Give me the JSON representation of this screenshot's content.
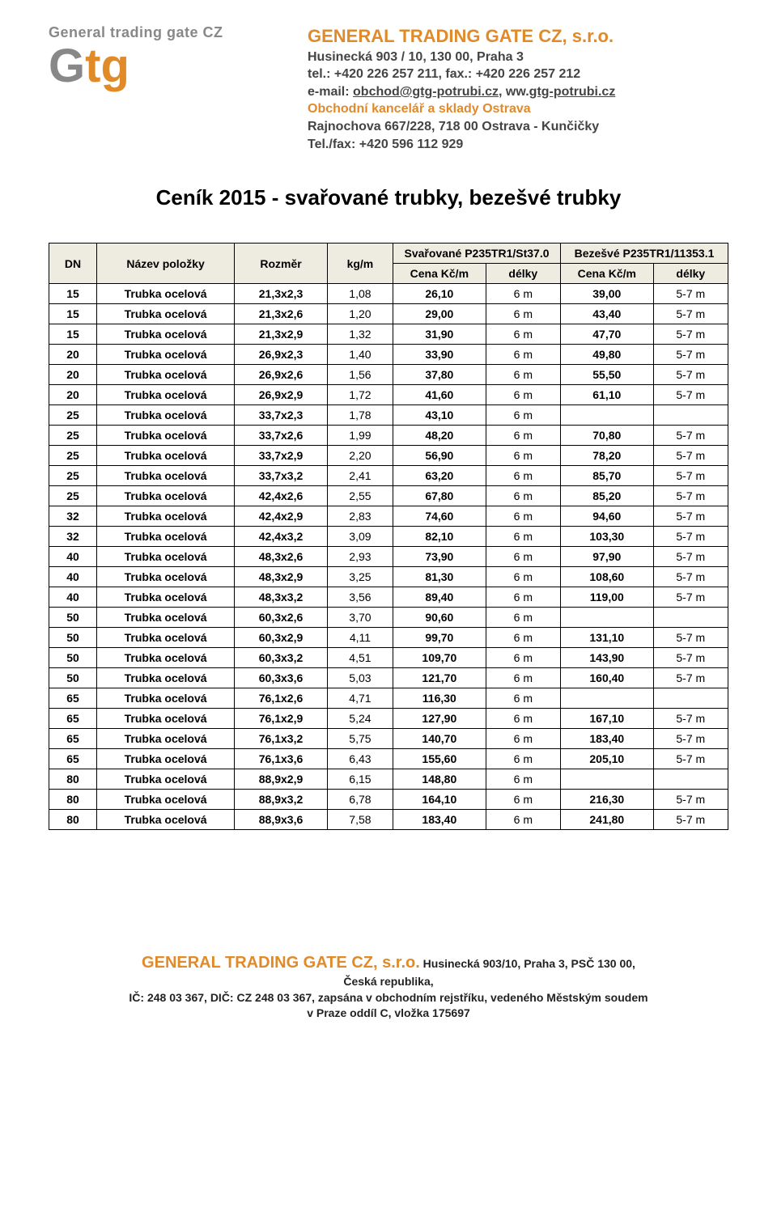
{
  "header": {
    "logo_text": "General trading gate CZ",
    "logo_g": "G",
    "logo_tg": "tg",
    "company": "GENERAL TRADING GATE CZ, s.r.o.",
    "addr1": "Husinecká 903 / 10, 130 00, Praha 3",
    "tel": "tel.: +420 226 257 211, fax.: +420 226 257 212",
    "email_label": "e-mail: ",
    "email": "obchod@gtg-potrubi.cz",
    "web_sep": ", ww.",
    "web": "gtg-potrubi.cz",
    "ostrava_title": "Obchodní kancelář a sklady Ostrava",
    "ostrava_addr": "Rajnochova 667/228, 718 00 Ostrava - Kunčičky",
    "ostrava_tel": "Tel./fax: +420 596 112 929"
  },
  "title": "Ceník 2015 - svařované trubky, bezešvé trubky",
  "table": {
    "headers": {
      "dn": "DN",
      "nazev": "Název položky",
      "rozmer": "Rozměr",
      "kgm": "kg/m",
      "svar": "Svařované P235TR1/St37.0",
      "bezesve": "Bezešvé P235TR1/11353.1",
      "cena": "Cena Kč/m",
      "delky": "délky"
    },
    "rows": [
      {
        "dn": "15",
        "name": "Trubka ocelová",
        "rozmer": "21,3x2,3",
        "kgm": "1,08",
        "c1": "26,10",
        "d1": "6 m",
        "c2": "39,00",
        "d2": "5-7 m"
      },
      {
        "dn": "15",
        "name": "Trubka ocelová",
        "rozmer": "21,3x2,6",
        "kgm": "1,20",
        "c1": "29,00",
        "d1": "6 m",
        "c2": "43,40",
        "d2": "5-7 m"
      },
      {
        "dn": "15",
        "name": "Trubka ocelová",
        "rozmer": "21,3x2,9",
        "kgm": "1,32",
        "c1": "31,90",
        "d1": "6 m",
        "c2": "47,70",
        "d2": "5-7 m"
      },
      {
        "dn": "20",
        "name": "Trubka ocelová",
        "rozmer": "26,9x2,3",
        "kgm": "1,40",
        "c1": "33,90",
        "d1": "6 m",
        "c2": "49,80",
        "d2": "5-7 m"
      },
      {
        "dn": "20",
        "name": "Trubka ocelová",
        "rozmer": "26,9x2,6",
        "kgm": "1,56",
        "c1": "37,80",
        "d1": "6 m",
        "c2": "55,50",
        "d2": "5-7 m"
      },
      {
        "dn": "20",
        "name": "Trubka ocelová",
        "rozmer": "26,9x2,9",
        "kgm": "1,72",
        "c1": "41,60",
        "d1": "6 m",
        "c2": "61,10",
        "d2": "5-7 m"
      },
      {
        "dn": "25",
        "name": "Trubka ocelová",
        "rozmer": "33,7x2,3",
        "kgm": "1,78",
        "c1": "43,10",
        "d1": "6 m",
        "c2": "",
        "d2": ""
      },
      {
        "dn": "25",
        "name": "Trubka ocelová",
        "rozmer": "33,7x2,6",
        "kgm": "1,99",
        "c1": "48,20",
        "d1": "6 m",
        "c2": "70,80",
        "d2": "5-7 m"
      },
      {
        "dn": "25",
        "name": "Trubka ocelová",
        "rozmer": "33,7x2,9",
        "kgm": "2,20",
        "c1": "56,90",
        "d1": "6 m",
        "c2": "78,20",
        "d2": "5-7 m"
      },
      {
        "dn": "25",
        "name": "Trubka ocelová",
        "rozmer": "33,7x3,2",
        "kgm": "2,41",
        "c1": "63,20",
        "d1": "6 m",
        "c2": "85,70",
        "d2": "5-7 m"
      },
      {
        "dn": "25",
        "name": "Trubka ocelová",
        "rozmer": "42,4x2,6",
        "kgm": "2,55",
        "c1": "67,80",
        "d1": "6 m",
        "c2": "85,20",
        "d2": "5-7 m"
      },
      {
        "dn": "32",
        "name": "Trubka ocelová",
        "rozmer": "42,4x2,9",
        "kgm": "2,83",
        "c1": "74,60",
        "d1": "6 m",
        "c2": "94,60",
        "d2": "5-7 m"
      },
      {
        "dn": "32",
        "name": "Trubka ocelová",
        "rozmer": "42,4x3,2",
        "kgm": "3,09",
        "c1": "82,10",
        "d1": "6 m",
        "c2": "103,30",
        "d2": "5-7 m"
      },
      {
        "dn": "40",
        "name": "Trubka ocelová",
        "rozmer": "48,3x2,6",
        "kgm": "2,93",
        "c1": "73,90",
        "d1": "6 m",
        "c2": "97,90",
        "d2": "5-7 m"
      },
      {
        "dn": "40",
        "name": "Trubka ocelová",
        "rozmer": "48,3x2,9",
        "kgm": "3,25",
        "c1": "81,30",
        "d1": "6 m",
        "c2": "108,60",
        "d2": "5-7 m"
      },
      {
        "dn": "40",
        "name": "Trubka ocelová",
        "rozmer": "48,3x3,2",
        "kgm": "3,56",
        "c1": "89,40",
        "d1": "6 m",
        "c2": "119,00",
        "d2": "5-7 m"
      },
      {
        "dn": "50",
        "name": "Trubka ocelová",
        "rozmer": "60,3x2,6",
        "kgm": "3,70",
        "c1": "90,60",
        "d1": "6 m",
        "c2": "",
        "d2": ""
      },
      {
        "dn": "50",
        "name": "Trubka ocelová",
        "rozmer": "60,3x2,9",
        "kgm": "4,11",
        "c1": "99,70",
        "d1": "6 m",
        "c2": "131,10",
        "d2": "5-7 m"
      },
      {
        "dn": "50",
        "name": "Trubka ocelová",
        "rozmer": "60,3x3,2",
        "kgm": "4,51",
        "c1": "109,70",
        "d1": "6 m",
        "c2": "143,90",
        "d2": "5-7 m"
      },
      {
        "dn": "50",
        "name": "Trubka ocelová",
        "rozmer": "60,3x3,6",
        "kgm": "5,03",
        "c1": "121,70",
        "d1": "6 m",
        "c2": "160,40",
        "d2": "5-7 m"
      },
      {
        "dn": "65",
        "name": "Trubka ocelová",
        "rozmer": "76,1x2,6",
        "kgm": "4,71",
        "c1": "116,30",
        "d1": "6 m",
        "c2": "",
        "d2": ""
      },
      {
        "dn": "65",
        "name": "Trubka ocelová",
        "rozmer": "76,1x2,9",
        "kgm": "5,24",
        "c1": "127,90",
        "d1": "6 m",
        "c2": "167,10",
        "d2": "5-7 m"
      },
      {
        "dn": "65",
        "name": "Trubka ocelová",
        "rozmer": "76,1x3,2",
        "kgm": "5,75",
        "c1": "140,70",
        "d1": "6 m",
        "c2": "183,40",
        "d2": "5-7 m"
      },
      {
        "dn": "65",
        "name": "Trubka ocelová",
        "rozmer": "76,1x3,6",
        "kgm": "6,43",
        "c1": "155,60",
        "d1": "6 m",
        "c2": "205,10",
        "d2": "5-7 m"
      },
      {
        "dn": "80",
        "name": "Trubka ocelová",
        "rozmer": "88,9x2,9",
        "kgm": "6,15",
        "c1": "148,80",
        "d1": "6 m",
        "c2": "",
        "d2": ""
      },
      {
        "dn": "80",
        "name": "Trubka ocelová",
        "rozmer": "88,9x3,2",
        "kgm": "6,78",
        "c1": "164,10",
        "d1": "6 m",
        "c2": "216,30",
        "d2": "5-7 m"
      },
      {
        "dn": "80",
        "name": "Trubka ocelová",
        "rozmer": "88,9x3,6",
        "kgm": "7,58",
        "c1": "183,40",
        "d1": "6 m",
        "c2": "241,80",
        "d2": "5-7 m"
      }
    ]
  },
  "footer": {
    "company": "GENERAL TRADING GATE CZ, s.r.o.",
    "addr": " Husinecká 903/10, Praha 3, PSČ 130 00,",
    "country": "Česká republika,",
    "ic": "IČ: 248 03 367, DIČ: CZ 248 03 367, zapsána v obchodním rejstříku, vedeného Městským soudem",
    "reg": "v Praze oddíl C, vložka 175697"
  },
  "colors": {
    "orange": "#e08a2a",
    "grey": "#888888",
    "header_bg": "#eeece1"
  }
}
